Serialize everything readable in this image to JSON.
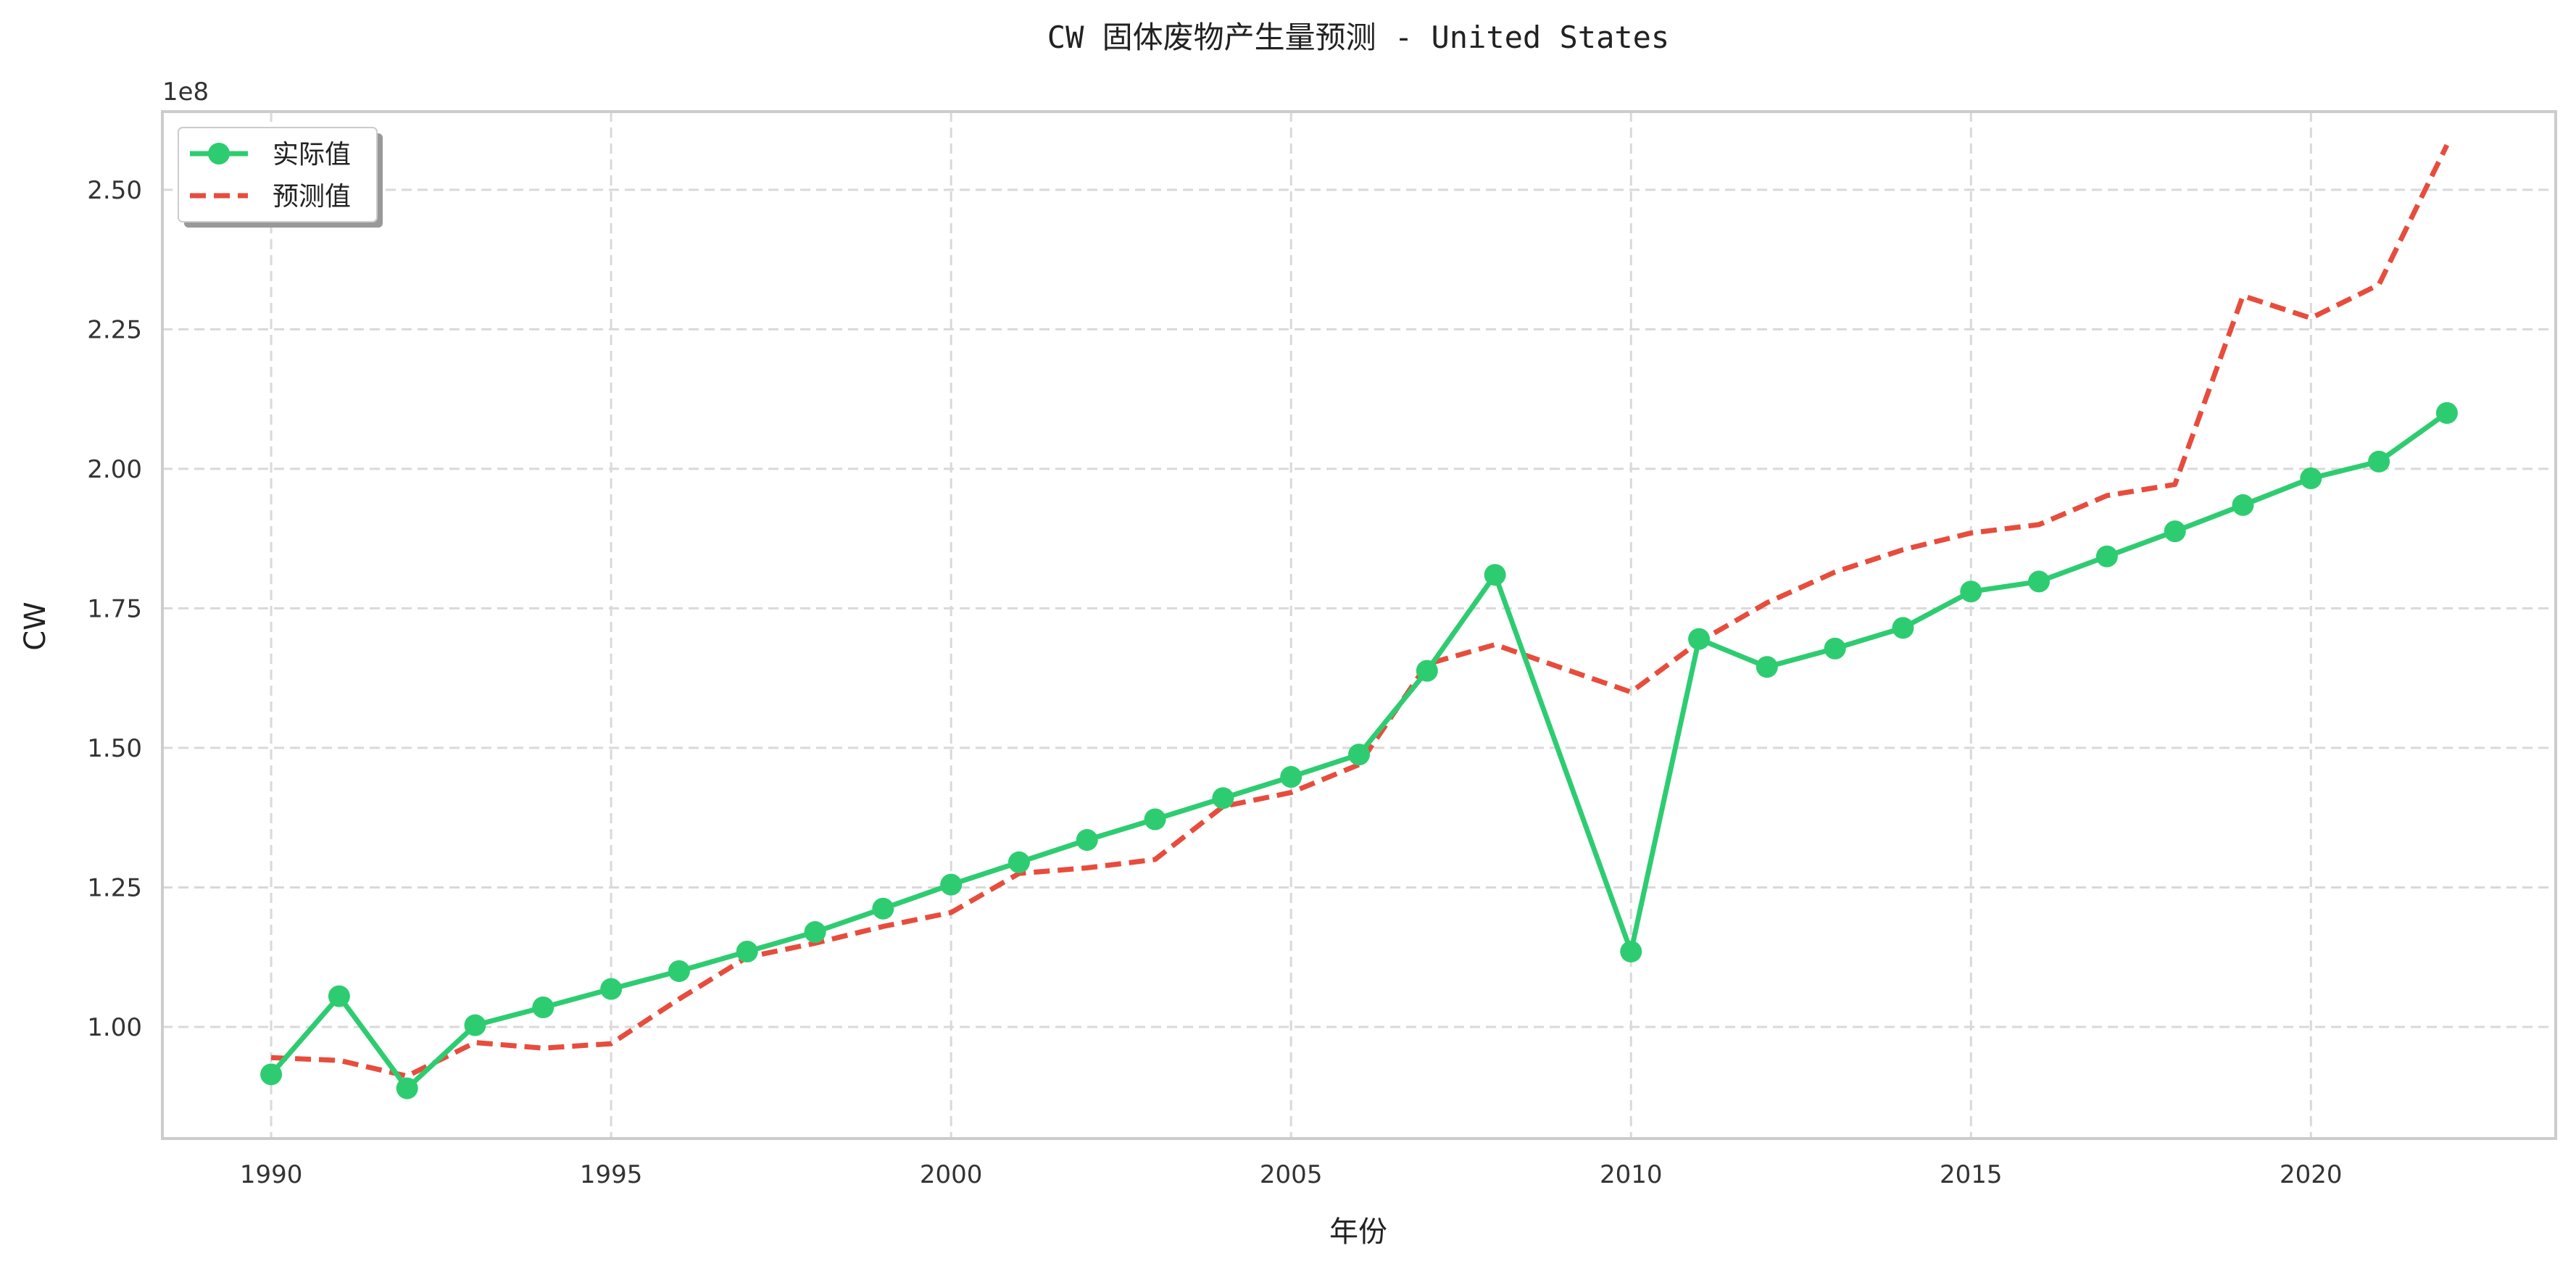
{
  "chart_data": {
    "type": "line",
    "title": "CW 固体废物产生量预测 - United States",
    "xlabel": "年份",
    "ylabel": "CW",
    "y_offset_label": "1e8",
    "xlim": [
      1988.4,
      2023.6
    ],
    "ylim": [
      0.8,
      2.64
    ],
    "x_ticks": [
      1990,
      1995,
      2000,
      2005,
      2010,
      2015,
      2020
    ],
    "x_tick_labels": [
      "1990",
      "1995",
      "2000",
      "2005",
      "2010",
      "2015",
      "2020"
    ],
    "y_ticks": [
      1.0,
      1.25,
      1.5,
      1.75,
      2.0,
      2.25,
      2.5
    ],
    "y_tick_labels": [
      "1.00",
      "1.25",
      "1.50",
      "1.75",
      "2.00",
      "2.25",
      "2.50"
    ],
    "grid": true,
    "legend_position": "top-left",
    "x": [
      1990,
      1991,
      1992,
      1993,
      1994,
      1995,
      1996,
      1997,
      1998,
      1999,
      2000,
      2001,
      2002,
      2003,
      2004,
      2005,
      2006,
      2007,
      2008,
      2010,
      2011,
      2012,
      2013,
      2014,
      2015,
      2016,
      2017,
      2018,
      2019,
      2020,
      2021,
      2022
    ],
    "series": [
      {
        "name": "实际值",
        "color": "#2ecc71",
        "style": "solid-marker",
        "values": [
          0.915,
          1.055,
          0.89,
          1.003,
          1.035,
          1.068,
          1.1,
          1.135,
          1.17,
          1.212,
          1.255,
          1.295,
          1.335,
          1.372,
          1.41,
          1.448,
          1.488,
          1.638,
          1.81,
          1.135,
          1.695,
          1.645,
          1.678,
          1.715,
          1.78,
          1.798,
          1.843,
          1.888,
          1.935,
          1.983,
          2.013,
          2.1
        ]
      },
      {
        "name": "预测值",
        "color": "#e74c3c",
        "style": "dashed",
        "values": [
          0.945,
          0.94,
          0.912,
          0.972,
          0.962,
          0.97,
          1.05,
          1.125,
          1.15,
          1.18,
          1.205,
          1.275,
          1.285,
          1.3,
          1.395,
          1.42,
          1.47,
          1.65,
          1.685,
          1.6,
          1.69,
          1.76,
          1.815,
          1.855,
          1.885,
          1.9,
          1.952,
          1.972,
          2.31,
          2.27,
          2.33,
          2.58
        ]
      }
    ]
  }
}
